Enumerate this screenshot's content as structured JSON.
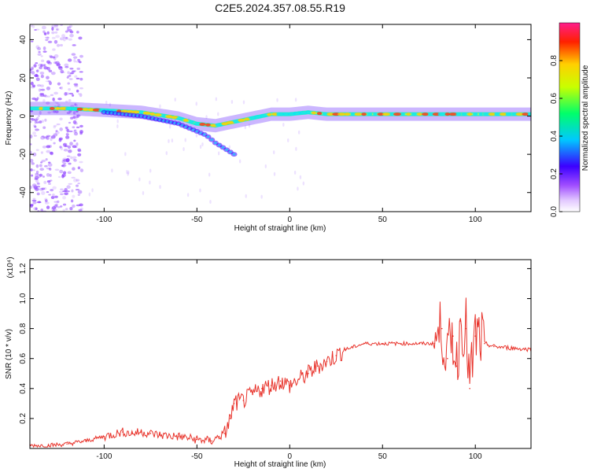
{
  "title": "C2E5.2024.357.08.55.R19",
  "chart_data": [
    {
      "type": "heatmap",
      "xlabel": "Height of straight line (km)",
      "ylabel": "Frequency (Hz)",
      "xlim": [
        -140,
        130
      ],
      "ylim": [
        -50,
        48
      ],
      "xticks": [
        -100,
        -50,
        0,
        50,
        100
      ],
      "yticks": [
        -40,
        -20,
        0,
        20,
        40
      ],
      "ridge": {
        "x": [
          -140,
          -120,
          -100,
          -80,
          -60,
          -50,
          -40,
          -35,
          -30,
          -20,
          -10,
          0,
          10,
          20,
          40,
          60,
          80,
          90,
          100,
          130
        ],
        "y": [
          4,
          4,
          3,
          2,
          -1,
          -4,
          -5,
          -4,
          -3,
          -1,
          1,
          1,
          2,
          1,
          1,
          1,
          1,
          1,
          1,
          1
        ]
      },
      "secondary_streak": {
        "x": [
          -100,
          -80,
          -60,
          -45,
          -40,
          -35,
          -30
        ],
        "y": [
          2,
          0,
          -4,
          -10,
          -14,
          -17,
          -20
        ]
      },
      "colorbar": {
        "label": "Normalized spectral amplitude",
        "ticks": [
          0.0,
          0.2,
          0.4,
          0.6,
          0.8
        ],
        "range": [
          0,
          1
        ]
      }
    },
    {
      "type": "line",
      "xlabel": "Height of straight line (km)",
      "ylabel": "SNR (10 * v/v)",
      "scale_note": "(x10⁴)",
      "xlim": [
        -140,
        130
      ],
      "ylim": [
        0,
        1.26
      ],
      "xticks": [
        -100,
        -50,
        0,
        50,
        100
      ],
      "yticks": [
        0.2,
        0.4,
        0.6,
        0.8,
        1.0,
        1.2
      ],
      "series": [
        {
          "color": "#e8332b",
          "x": [
            -140,
            -130,
            -120,
            -110,
            -100,
            -90,
            -85,
            -80,
            -75,
            -70,
            -60,
            -50,
            -42,
            -38,
            -35,
            -32,
            -30,
            -25,
            -20,
            -15,
            -10,
            -5,
            0,
            5,
            10,
            15,
            20,
            25,
            30,
            40,
            50,
            60,
            70,
            78,
            82,
            85,
            88,
            90,
            92,
            95,
            97,
            100,
            105,
            110,
            120,
            130
          ],
          "y": [
            0.02,
            0.02,
            0.03,
            0.05,
            0.08,
            0.11,
            0.1,
            0.11,
            0.1,
            0.09,
            0.08,
            0.06,
            0.05,
            0.08,
            0.1,
            0.2,
            0.3,
            0.32,
            0.36,
            0.4,
            0.42,
            0.45,
            0.42,
            0.46,
            0.5,
            0.55,
            0.58,
            0.62,
            0.66,
            0.7,
            0.7,
            0.7,
            0.7,
            0.7,
            0.8,
            0.6,
            0.75,
            0.55,
            0.85,
            0.8,
            0.4,
            0.75,
            0.7,
            0.68,
            0.67,
            0.66
          ]
        }
      ]
    }
  ]
}
